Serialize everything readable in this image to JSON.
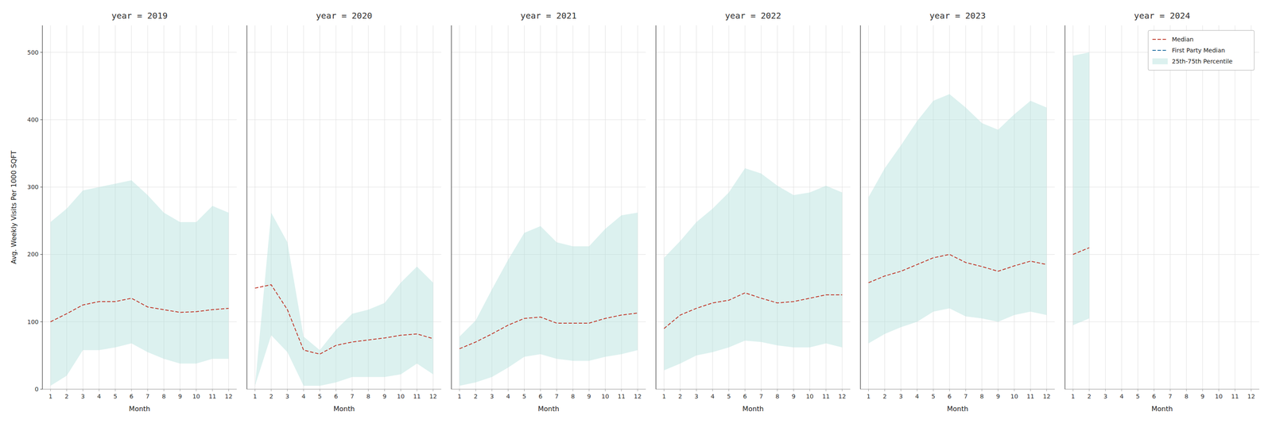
{
  "chart_data": [
    {
      "type": "line",
      "title": "year = 2019",
      "x_label": "Month",
      "y_label": "Avg. Weekly Visits Per 1000 SQFT",
      "x": [
        1,
        2,
        3,
        4,
        5,
        6,
        7,
        8,
        9,
        10,
        11,
        12
      ],
      "xlim": [
        0.5,
        12.5
      ],
      "xticks": [
        1,
        2,
        3,
        4,
        5,
        6,
        7,
        8,
        9,
        10,
        11,
        12
      ],
      "ylim": [
        0,
        540
      ],
      "yticks": [
        0,
        100,
        200,
        300,
        400,
        500
      ],
      "grid": true,
      "series": [
        {
          "color": "#c0392b",
          "line_style": "dashed",
          "values": [
            100,
            112,
            125,
            130,
            130,
            135,
            122,
            118,
            114,
            115,
            118,
            120
          ]
        },
        {
          "type": "area",
          "color": "#b2dfdb",
          "low": [
            5,
            20,
            58,
            58,
            62,
            68,
            55,
            45,
            38,
            38,
            45,
            45
          ],
          "high": [
            248,
            268,
            295,
            300,
            305,
            310,
            288,
            262,
            248,
            248,
            272,
            262
          ]
        }
      ]
    },
    {
      "type": "line",
      "title": "year = 2020",
      "x_label": "Month",
      "tick_labels": "x",
      "x": [
        1,
        2,
        3,
        4,
        5,
        6,
        7,
        8,
        9,
        10,
        11,
        12
      ],
      "xlim": [
        0.5,
        12.5
      ],
      "xticks": [
        1,
        2,
        3,
        4,
        5,
        6,
        7,
        8,
        9,
        10,
        11,
        12
      ],
      "ylim": [
        0,
        540
      ],
      "yticks": [
        0,
        100,
        200,
        300,
        400,
        500
      ],
      "grid": true,
      "series": [
        {
          "color": "#c0392b",
          "line_style": "dashed",
          "values": [
            150,
            155,
            118,
            58,
            52,
            65,
            70,
            73,
            76,
            80,
            82,
            75
          ]
        },
        {
          "type": "area",
          "color": "#b2dfdb",
          "low": [
            5,
            80,
            55,
            5,
            5,
            10,
            18,
            18,
            18,
            22,
            38,
            22
          ],
          "high": [
            5,
            262,
            218,
            78,
            58,
            88,
            112,
            118,
            128,
            158,
            182,
            158
          ]
        }
      ]
    },
    {
      "type": "line",
      "title": "year = 2021",
      "x_label": "Month",
      "tick_labels": "x",
      "x": [
        1,
        2,
        3,
        4,
        5,
        6,
        7,
        8,
        9,
        10,
        11,
        12
      ],
      "xlim": [
        0.5,
        12.5
      ],
      "xticks": [
        1,
        2,
        3,
        4,
        5,
        6,
        7,
        8,
        9,
        10,
        11,
        12
      ],
      "ylim": [
        0,
        540
      ],
      "yticks": [
        0,
        100,
        200,
        300,
        400,
        500
      ],
      "grid": true,
      "series": [
        {
          "color": "#c0392b",
          "line_style": "dashed",
          "values": [
            60,
            70,
            82,
            95,
            105,
            107,
            98,
            98,
            98,
            105,
            110,
            113
          ]
        },
        {
          "type": "area",
          "color": "#b2dfdb",
          "low": [
            5,
            10,
            18,
            32,
            48,
            52,
            45,
            42,
            42,
            48,
            52,
            58
          ],
          "high": [
            78,
            102,
            148,
            192,
            232,
            242,
            218,
            212,
            212,
            238,
            258,
            262
          ]
        }
      ]
    },
    {
      "type": "line",
      "title": "year = 2022",
      "x_label": "Month",
      "tick_labels": "x",
      "x": [
        1,
        2,
        3,
        4,
        5,
        6,
        7,
        8,
        9,
        10,
        11,
        12
      ],
      "xlim": [
        0.5,
        12.5
      ],
      "xticks": [
        1,
        2,
        3,
        4,
        5,
        6,
        7,
        8,
        9,
        10,
        11,
        12
      ],
      "ylim": [
        0,
        540
      ],
      "yticks": [
        0,
        100,
        200,
        300,
        400,
        500
      ],
      "grid": true,
      "series": [
        {
          "color": "#c0392b",
          "line_style": "dashed",
          "values": [
            90,
            110,
            120,
            128,
            132,
            143,
            135,
            128,
            130,
            135,
            140,
            140
          ]
        },
        {
          "type": "area",
          "color": "#b2dfdb",
          "low": [
            28,
            38,
            50,
            55,
            62,
            72,
            70,
            65,
            62,
            62,
            68,
            62
          ],
          "high": [
            195,
            220,
            248,
            268,
            292,
            328,
            320,
            302,
            288,
            292,
            302,
            292
          ]
        }
      ]
    },
    {
      "type": "line",
      "title": "year = 2023",
      "x_label": "Month",
      "tick_labels": "x",
      "x": [
        1,
        2,
        3,
        4,
        5,
        6,
        7,
        8,
        9,
        10,
        11,
        12
      ],
      "xlim": [
        0.5,
        12.5
      ],
      "xticks": [
        1,
        2,
        3,
        4,
        5,
        6,
        7,
        8,
        9,
        10,
        11,
        12
      ],
      "ylim": [
        0,
        540
      ],
      "yticks": [
        0,
        100,
        200,
        300,
        400,
        500
      ],
      "grid": true,
      "series": [
        {
          "color": "#c0392b",
          "line_style": "dashed",
          "values": [
            158,
            168,
            175,
            185,
            195,
            200,
            188,
            182,
            175,
            183,
            190,
            185
          ]
        },
        {
          "type": "area",
          "color": "#b2dfdb",
          "low": [
            68,
            82,
            92,
            100,
            115,
            120,
            108,
            105,
            100,
            110,
            115,
            110
          ],
          "high": [
            285,
            328,
            362,
            398,
            428,
            438,
            418,
            395,
            385,
            408,
            428,
            418
          ]
        }
      ]
    },
    {
      "type": "line",
      "title": "year = 2024",
      "x_label": "Month",
      "tick_labels": "x",
      "legend": "upper right",
      "x": [
        1,
        2
      ],
      "xlim": [
        0.5,
        12.5
      ],
      "xticks": [
        1,
        2,
        3,
        4,
        5,
        6,
        7,
        8,
        9,
        10,
        11,
        12
      ],
      "ylim": [
        0,
        540
      ],
      "yticks": [
        0,
        100,
        200,
        300,
        400,
        500
      ],
      "grid": true,
      "series": [
        {
          "name": "Median",
          "color": "#c0392b",
          "line_style": "dashed",
          "values": [
            200,
            210
          ]
        },
        {
          "name": "First Party Median",
          "color": "#2471a3",
          "line_style": "dashed",
          "values": [
            null,
            null
          ]
        },
        {
          "name": "25th-75th Percentile",
          "type": "area",
          "color": "#b2dfdb",
          "low": [
            95,
            105
          ],
          "high": [
            495,
            500
          ]
        }
      ]
    }
  ]
}
